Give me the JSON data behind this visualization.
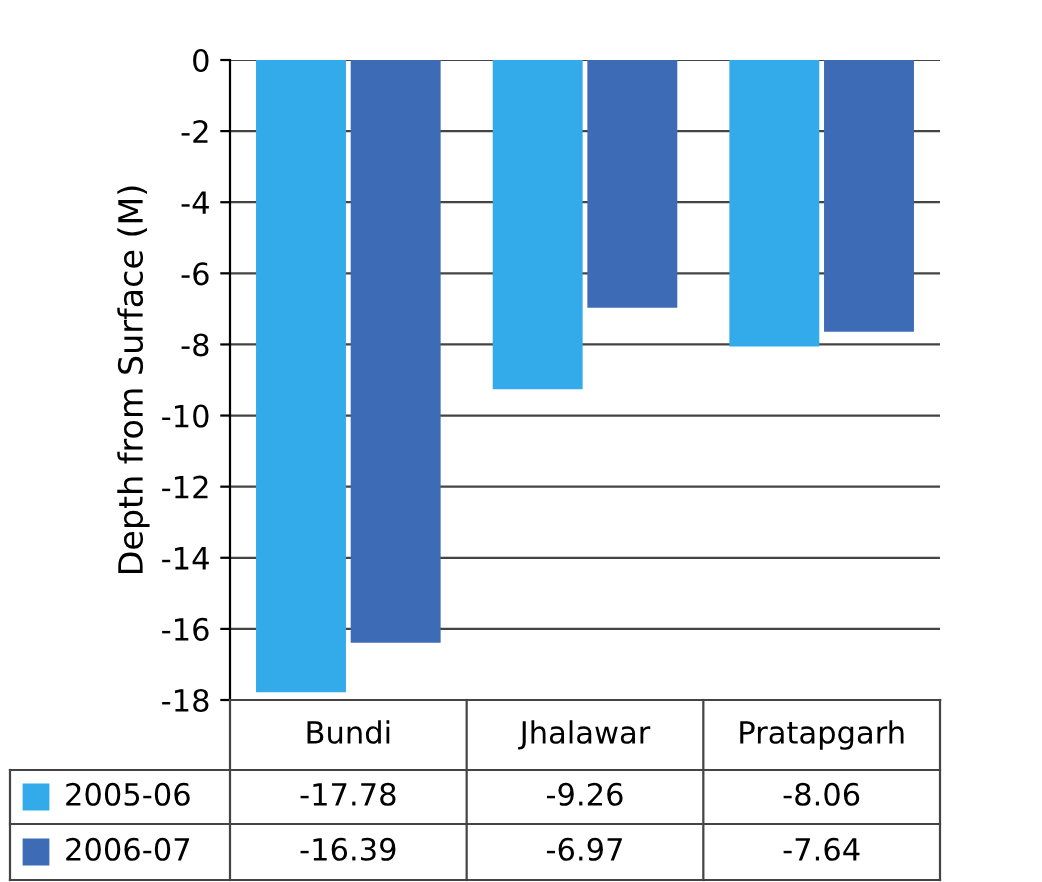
{
  "chart_data": {
    "type": "bar",
    "ylabel": "Depth from Surface (M)",
    "categories": [
      "Bundi",
      "Jhalawar",
      "Pratapgarh"
    ],
    "series": [
      {
        "name": "2005-06",
        "color": "#33aaea",
        "values": [
          -17.78,
          -9.26,
          -8.06
        ]
      },
      {
        "name": "2006-07",
        "color": "#3d6bb5",
        "values": [
          -16.39,
          -6.97,
          -7.64
        ]
      }
    ],
    "ylim": [
      -18,
      0
    ],
    "yticks": [
      0,
      -2,
      -4,
      -6,
      -8,
      -10,
      -12,
      -14,
      -16,
      -18
    ],
    "grid": "y",
    "data_labels": true,
    "legend": "bottom left"
  }
}
